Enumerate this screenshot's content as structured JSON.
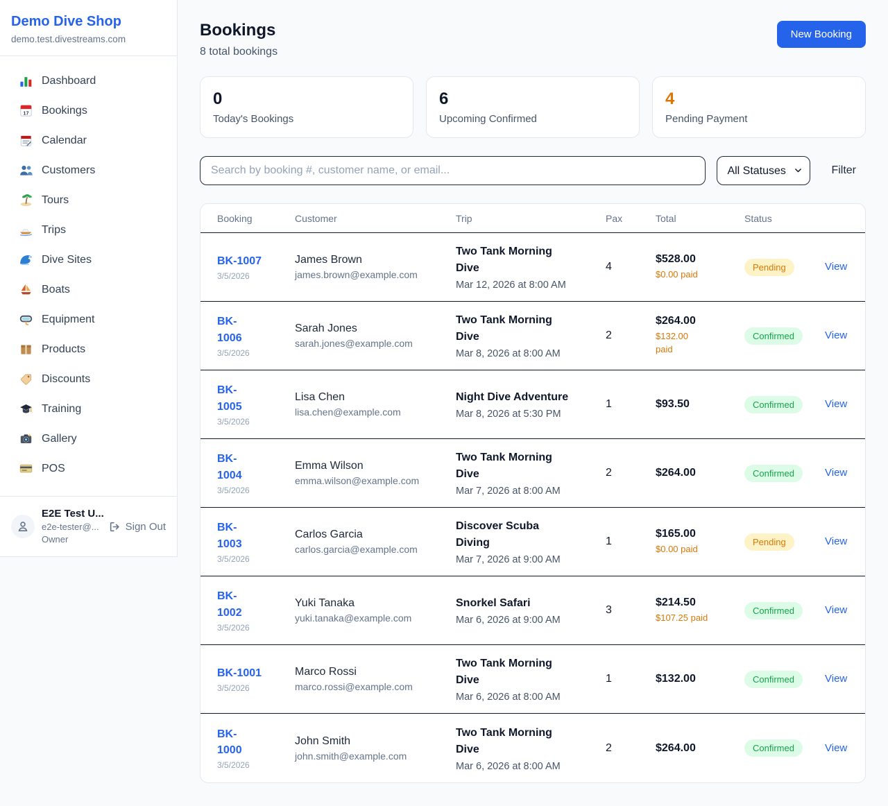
{
  "app": {
    "name": "Demo Dive Shop",
    "domain": "demo.test.divestreams.com"
  },
  "sidebar": {
    "items": [
      {
        "label": "Dashboard",
        "icon": "bar-chart",
        "active": ""
      },
      {
        "label": "Bookings",
        "icon": "calendar-date",
        "active": "active"
      },
      {
        "label": "Calendar",
        "icon": "calendar-pad",
        "active": ""
      },
      {
        "label": "Customers",
        "icon": "people",
        "active": ""
      },
      {
        "label": "Tours",
        "icon": "island",
        "active": ""
      },
      {
        "label": "Trips",
        "icon": "speedboat",
        "active": ""
      },
      {
        "label": "Dive Sites",
        "icon": "wave",
        "active": ""
      },
      {
        "label": "Boats",
        "icon": "sailboat",
        "active": ""
      },
      {
        "label": "Equipment",
        "icon": "dive-mask",
        "active": ""
      },
      {
        "label": "Products",
        "icon": "package",
        "active": ""
      },
      {
        "label": "Discounts",
        "icon": "tag",
        "active": ""
      },
      {
        "label": "Training",
        "icon": "grad-cap",
        "active": ""
      },
      {
        "label": "Gallery",
        "icon": "camera",
        "active": ""
      },
      {
        "label": "POS",
        "icon": "credit-card",
        "active": ""
      }
    ],
    "user": {
      "name": "E2E Test U...",
      "email": "e2e-tester@...",
      "role": "Owner",
      "sign_out_label": "Sign Out"
    }
  },
  "header": {
    "title": "Bookings",
    "subtitle": "8 total bookings",
    "new_booking_label": "New Booking"
  },
  "stats": [
    {
      "value": "0",
      "label": "Today's Bookings",
      "color": "#0f172a"
    },
    {
      "value": "6",
      "label": "Upcoming Confirmed",
      "color": "#0f172a"
    },
    {
      "value": "4",
      "label": "Pending Payment",
      "color": "#d97706"
    }
  ],
  "filters": {
    "search_placeholder": "Search by booking #, customer name, or email...",
    "status_selected": "All Statuses",
    "filter_label": "Filter"
  },
  "table": {
    "columns": [
      {
        "label": "Booking"
      },
      {
        "label": "Customer"
      },
      {
        "label": "Trip"
      },
      {
        "label": "Pax"
      },
      {
        "label": "Total"
      },
      {
        "label": "Status"
      },
      {
        "label": ""
      }
    ],
    "rows": [
      {
        "booking_id": "BK-1007",
        "booking_date": "3/5/2026",
        "customer_name": "James Brown",
        "customer_email": "james.brown@example.com",
        "trip_name": "Two Tank Morning\nDive",
        "trip_datetime": "Mar 12, 2026 at 8:00 AM",
        "pax": "4",
        "total": "$528.00",
        "paid": "$0.00 paid",
        "status": "Pending",
        "status_class": "pending",
        "action": "View"
      },
      {
        "booking_id": "BK-\n1006",
        "booking_date": "3/5/2026",
        "customer_name": "Sarah Jones",
        "customer_email": "sarah.jones@example.com",
        "trip_name": "Two Tank Morning\nDive",
        "trip_datetime": "Mar 8, 2026 at 8:00 AM",
        "pax": "2",
        "total": "$264.00",
        "paid": "$132.00\npaid",
        "status": "Confirmed",
        "status_class": "confirmed",
        "action": "View"
      },
      {
        "booking_id": "BK-\n1005",
        "booking_date": "3/5/2026",
        "customer_name": "Lisa Chen",
        "customer_email": "lisa.chen@example.com",
        "trip_name": "Night Dive Adventure",
        "trip_datetime": "Mar 8, 2026 at 5:30 PM",
        "pax": "1",
        "total": "$93.50",
        "paid": "",
        "status": "Confirmed",
        "status_class": "confirmed",
        "action": "View"
      },
      {
        "booking_id": "BK-\n1004",
        "booking_date": "3/5/2026",
        "customer_name": "Emma Wilson",
        "customer_email": "emma.wilson@example.com",
        "trip_name": "Two Tank Morning\nDive",
        "trip_datetime": "Mar 7, 2026 at 8:00 AM",
        "pax": "2",
        "total": "$264.00",
        "paid": "",
        "status": "Confirmed",
        "status_class": "confirmed",
        "action": "View"
      },
      {
        "booking_id": "BK-\n1003",
        "booking_date": "3/5/2026",
        "customer_name": "Carlos Garcia",
        "customer_email": "carlos.garcia@example.com",
        "trip_name": "Discover Scuba\nDiving",
        "trip_datetime": "Mar 7, 2026 at 9:00 AM",
        "pax": "1",
        "total": "$165.00",
        "paid": "$0.00 paid",
        "status": "Pending",
        "status_class": "pending",
        "action": "View"
      },
      {
        "booking_id": "BK-\n1002",
        "booking_date": "3/5/2026",
        "customer_name": "Yuki Tanaka",
        "customer_email": "yuki.tanaka@example.com",
        "trip_name": "Snorkel Safari",
        "trip_datetime": "Mar 6, 2026 at 9:00 AM",
        "pax": "3",
        "total": "$214.50",
        "paid": "$107.25 paid",
        "status": "Confirmed",
        "status_class": "confirmed",
        "action": "View"
      },
      {
        "booking_id": "BK-1001",
        "booking_date": "3/5/2026",
        "customer_name": "Marco Rossi",
        "customer_email": "marco.rossi@example.com",
        "trip_name": "Two Tank Morning\nDive",
        "trip_datetime": "Mar 6, 2026 at 8:00 AM",
        "pax": "1",
        "total": "$132.00",
        "paid": "",
        "status": "Confirmed",
        "status_class": "confirmed",
        "action": "View"
      },
      {
        "booking_id": "BK-\n1000",
        "booking_date": "3/5/2026",
        "customer_name": "John Smith",
        "customer_email": "john.smith@example.com",
        "trip_name": "Two Tank Morning\nDive",
        "trip_datetime": "Mar 6, 2026 at 8:00 AM",
        "pax": "2",
        "total": "$264.00",
        "paid": "",
        "status": "Confirmed",
        "status_class": "confirmed",
        "action": "View"
      }
    ]
  },
  "colors": {
    "accent": "#2563eb",
    "pending_text": "#d97706",
    "pending_bg": "#fef3c7",
    "confirmed_text": "#16a34a",
    "confirmed_bg": "#dcfce7",
    "page_bg": "#f8fafc",
    "border_light": "#e2e8f0",
    "border_dark": "#0f172a"
  }
}
